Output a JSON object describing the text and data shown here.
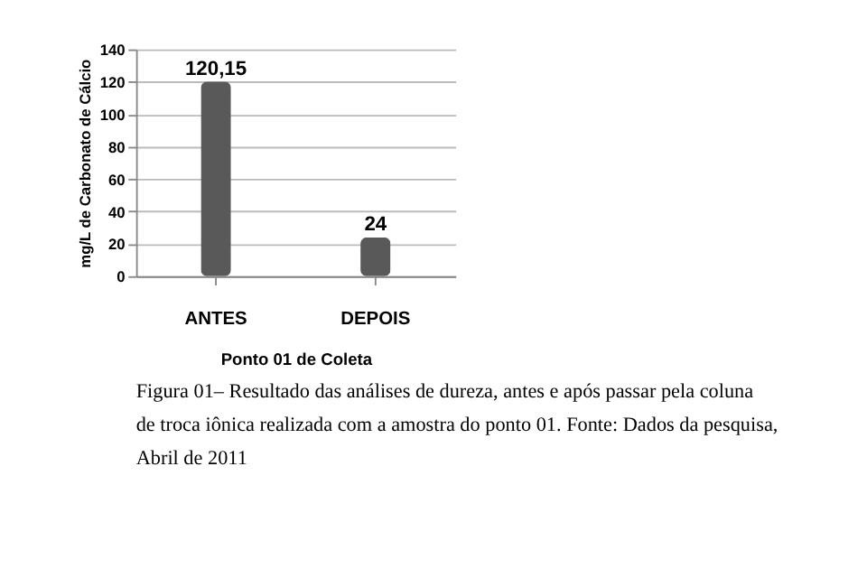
{
  "chart_data": {
    "type": "bar",
    "categories": [
      "ANTES",
      "DEPOIS"
    ],
    "values": [
      120.15,
      24
    ],
    "value_labels": [
      "120,15",
      "24"
    ],
    "color": "#595959",
    "ylabel": "mg/L de Carbonato de Cálcio",
    "xlabel": "Ponto 01 de Coleta",
    "ylim": [
      0,
      140
    ],
    "yticks": [
      0,
      20,
      40,
      60,
      80,
      100,
      120,
      140
    ],
    "grid": "y",
    "annotations": [
      "Figura 01– Resultado das análises de dureza, antes e após passar pela coluna de troca iônica realizada com a amostra do ponto 01. Fonte: Dados da pesquisa, Abril de 2011"
    ]
  }
}
